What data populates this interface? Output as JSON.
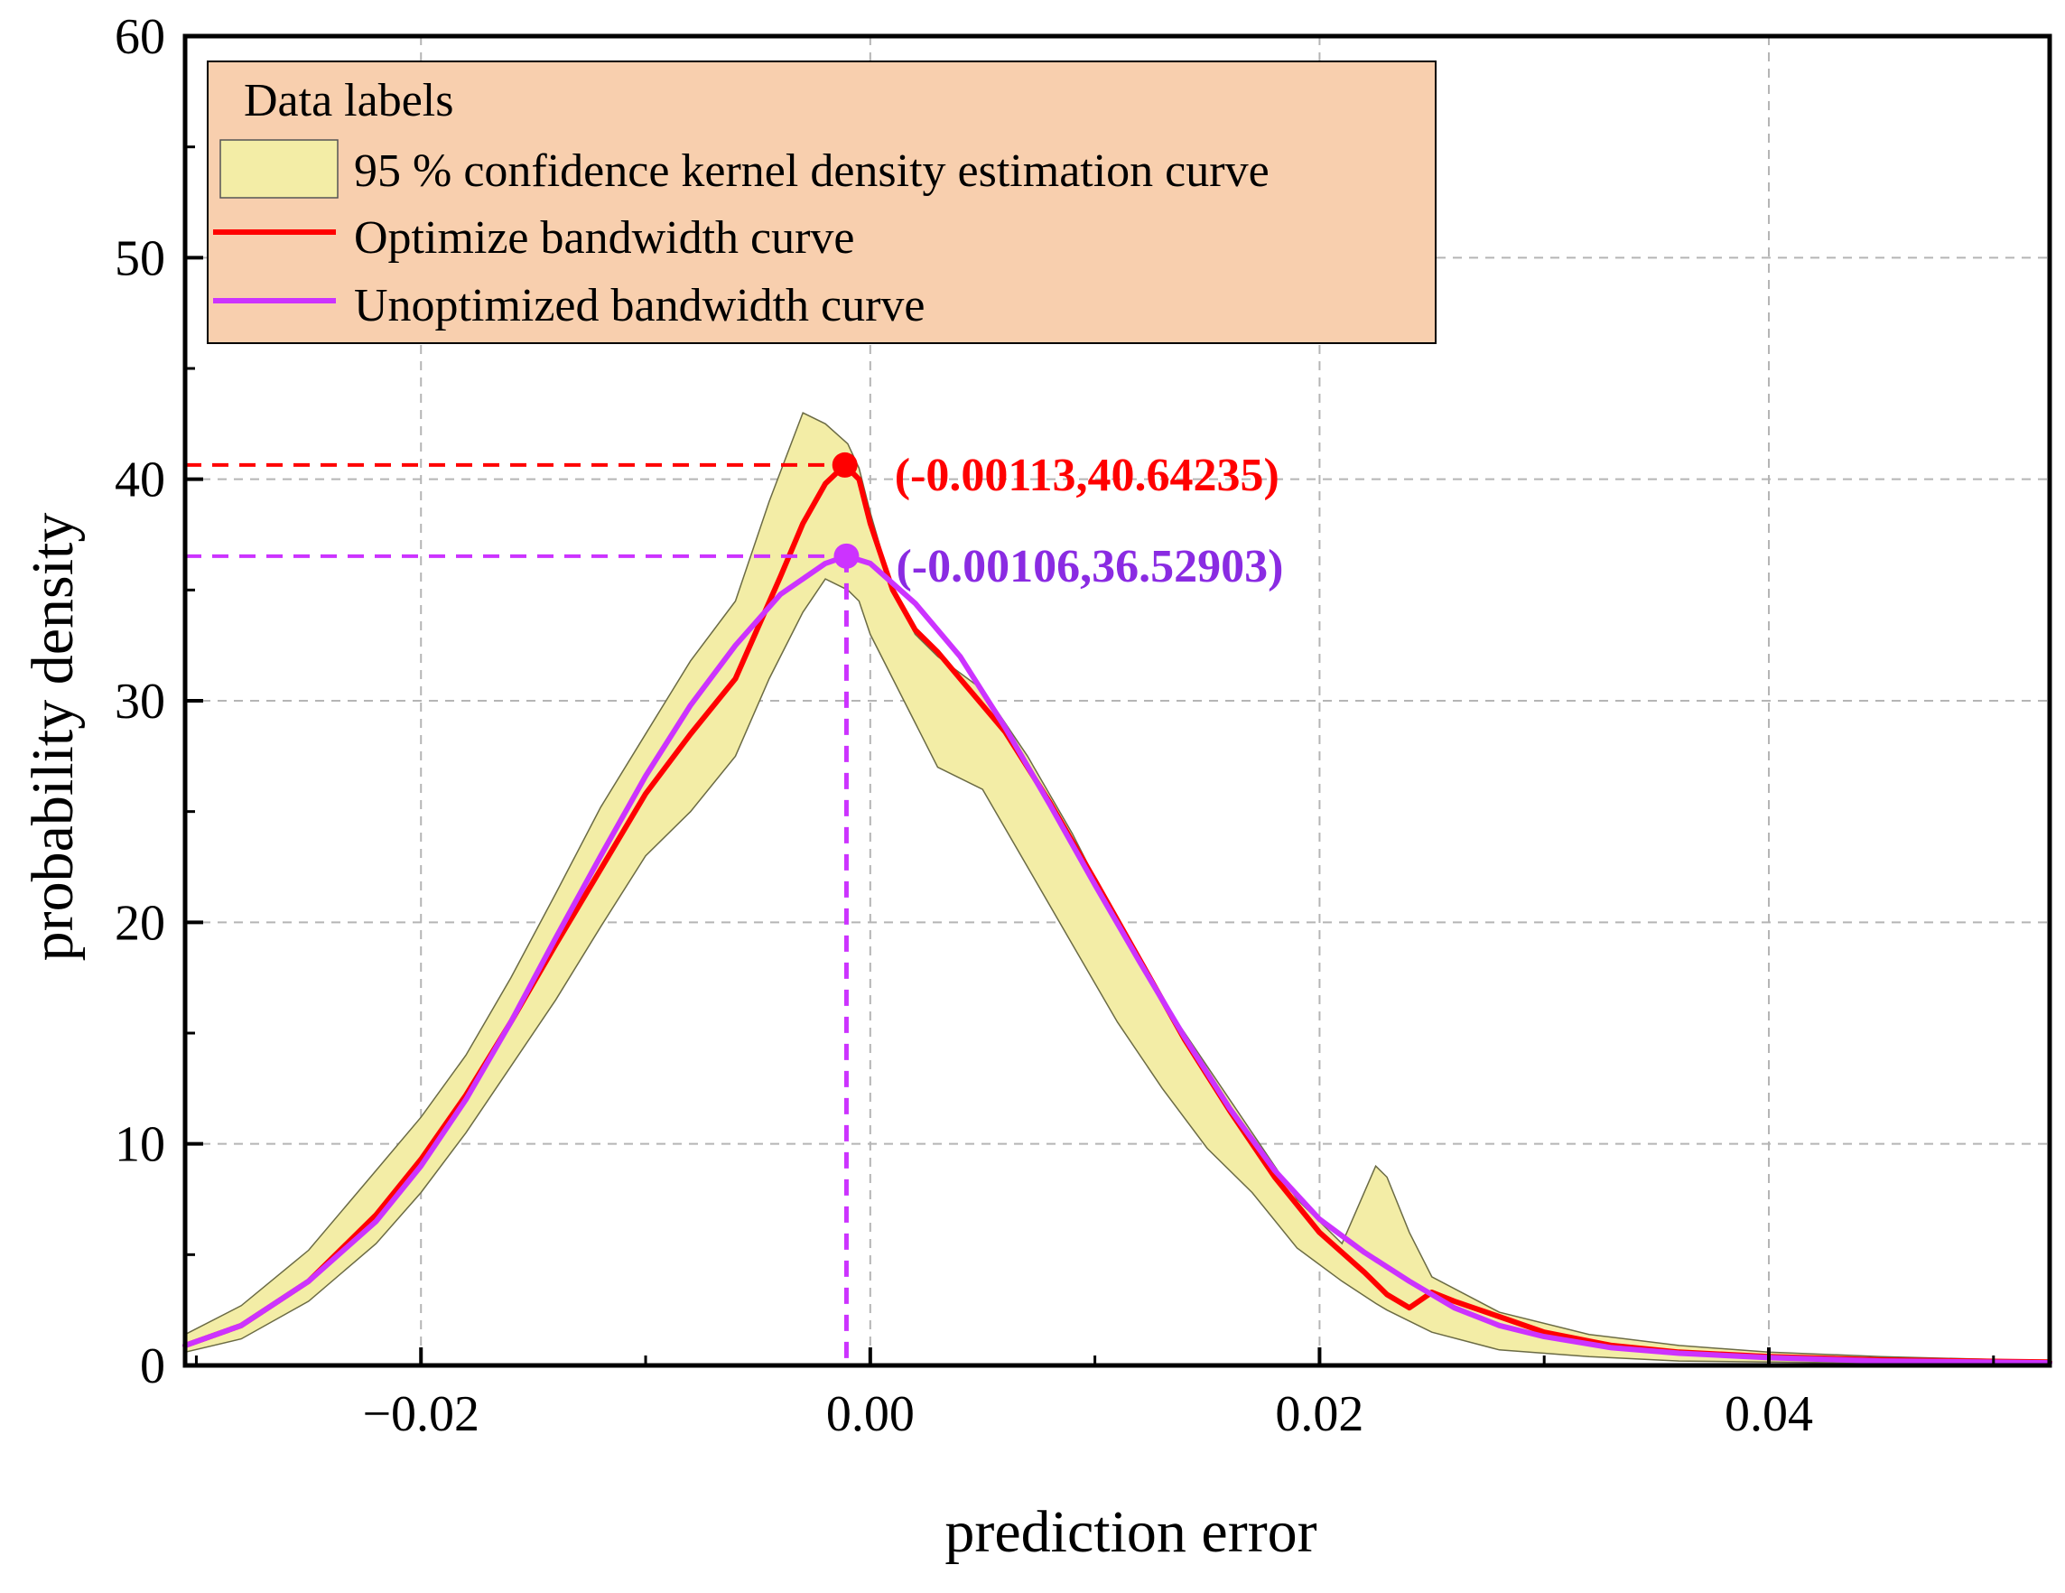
{
  "chart_data": {
    "type": "line",
    "title": "",
    "xlabel": "prediction error",
    "ylabel": "probability density",
    "xlim": [
      -0.0305,
      0.0525
    ],
    "ylim": [
      0,
      60
    ],
    "x_ticks": [
      -0.02,
      0.0,
      0.02,
      0.04
    ],
    "x_tick_labels": [
      "−0.02",
      "0.00",
      "0.02",
      "0.04"
    ],
    "y_ticks": [
      0,
      10,
      20,
      30,
      40,
      50,
      60
    ],
    "y_tick_labels": [
      "0",
      "10",
      "20",
      "30",
      "40",
      "50",
      "60"
    ],
    "grid": true,
    "legend": {
      "position": "top-left",
      "title": "Data labels",
      "entries": [
        {
          "label": "95 % confidence kernel density estimation curve",
          "kind": "band",
          "color": "#f3eda6"
        },
        {
          "label": "Optimize bandwidth curve",
          "kind": "line",
          "color": "#ff0000"
        },
        {
          "label": "Unoptimized bandwidth curve",
          "kind": "line",
          "color": "#cc33ff"
        }
      ]
    },
    "band": {
      "name": "95 % confidence kernel density estimation curve",
      "color": "#f3eda6",
      "x": [
        -0.0305,
        -0.028,
        -0.025,
        -0.022,
        -0.02,
        -0.018,
        -0.016,
        -0.014,
        -0.012,
        -0.01,
        -0.008,
        -0.006,
        -0.0045,
        -0.003,
        -0.002,
        -0.001,
        -0.0005,
        0.0,
        0.001,
        0.002,
        0.003,
        0.005,
        0.007,
        0.009,
        0.011,
        0.013,
        0.015,
        0.017,
        0.019,
        0.021,
        0.0225,
        0.023,
        0.024,
        0.025,
        0.028,
        0.032,
        0.036,
        0.04,
        0.045,
        0.0525
      ],
      "upper": [
        1.4,
        2.7,
        5.2,
        8.8,
        11.2,
        14.0,
        17.5,
        21.3,
        25.2,
        28.5,
        31.8,
        34.5,
        39.0,
        43.0,
        42.5,
        41.6,
        40.5,
        38.5,
        35.0,
        33.0,
        32.0,
        30.5,
        27.5,
        24.0,
        20.0,
        16.5,
        13.5,
        10.5,
        7.5,
        5.5,
        9.0,
        8.5,
        6.0,
        4.0,
        2.4,
        1.4,
        0.9,
        0.6,
        0.4,
        0.2
      ],
      "lower": [
        0.6,
        1.2,
        2.9,
        5.5,
        7.8,
        10.5,
        13.5,
        16.5,
        19.8,
        23.0,
        25.0,
        27.5,
        31.0,
        34.0,
        35.5,
        35.0,
        34.5,
        33.0,
        31.0,
        29.0,
        27.0,
        26.0,
        22.5,
        19.0,
        15.5,
        12.5,
        9.8,
        7.8,
        5.3,
        3.8,
        2.8,
        2.5,
        2.0,
        1.5,
        0.7,
        0.4,
        0.2,
        0.15,
        0.1,
        0.05
      ]
    },
    "series": [
      {
        "name": "Optimize bandwidth curve",
        "color": "#ff0000",
        "x": [
          -0.0305,
          -0.028,
          -0.025,
          -0.022,
          -0.02,
          -0.018,
          -0.016,
          -0.014,
          -0.012,
          -0.01,
          -0.008,
          -0.006,
          -0.005,
          -0.004,
          -0.003,
          -0.002,
          -0.00113,
          -0.0005,
          0.0,
          0.001,
          0.002,
          0.003,
          0.004,
          0.006,
          0.008,
          0.01,
          0.012,
          0.014,
          0.016,
          0.018,
          0.02,
          0.022,
          0.023,
          0.024,
          0.025,
          0.026,
          0.028,
          0.03,
          0.033,
          0.036,
          0.04,
          0.045,
          0.0525
        ],
        "values": [
          0.9,
          1.8,
          3.8,
          6.8,
          9.3,
          12.2,
          15.5,
          19.0,
          22.4,
          25.8,
          28.5,
          31.0,
          33.3,
          35.6,
          38.0,
          39.8,
          40.64,
          40.0,
          38.0,
          35.0,
          33.2,
          32.2,
          31.0,
          28.6,
          25.4,
          21.9,
          18.3,
          14.7,
          11.5,
          8.5,
          6.0,
          4.2,
          3.2,
          2.6,
          3.3,
          2.9,
          2.2,
          1.5,
          0.9,
          0.6,
          0.4,
          0.25,
          0.15
        ]
      },
      {
        "name": "Unoptimized bandwidth curve",
        "color": "#cc33ff",
        "x": [
          -0.0305,
          -0.028,
          -0.025,
          -0.022,
          -0.02,
          -0.018,
          -0.016,
          -0.014,
          -0.012,
          -0.01,
          -0.008,
          -0.006,
          -0.004,
          -0.002,
          -0.00106,
          0.0,
          0.002,
          0.004,
          0.006,
          0.008,
          0.01,
          0.012,
          0.014,
          0.016,
          0.018,
          0.02,
          0.022,
          0.024,
          0.026,
          0.028,
          0.03,
          0.033,
          0.036,
          0.04,
          0.045,
          0.0525
        ],
        "values": [
          0.9,
          1.8,
          3.8,
          6.5,
          9.0,
          12.0,
          15.5,
          19.3,
          23.0,
          26.6,
          29.8,
          32.5,
          34.8,
          36.2,
          36.53,
          36.2,
          34.4,
          32.0,
          28.8,
          25.3,
          21.7,
          18.2,
          14.8,
          11.6,
          8.8,
          6.6,
          5.1,
          3.8,
          2.6,
          1.8,
          1.3,
          0.8,
          0.55,
          0.35,
          0.2,
          0.12
        ]
      }
    ],
    "annotations": [
      {
        "text": "(-0.00113,40.64235)",
        "x": -0.00113,
        "y": 40.64235,
        "color": "#ff0000"
      },
      {
        "text": "(-0.00106,36.52903)",
        "x": -0.00106,
        "y": 36.52903,
        "color": "#8a2be2",
        "marker_color": "#cc33ff"
      }
    ]
  }
}
